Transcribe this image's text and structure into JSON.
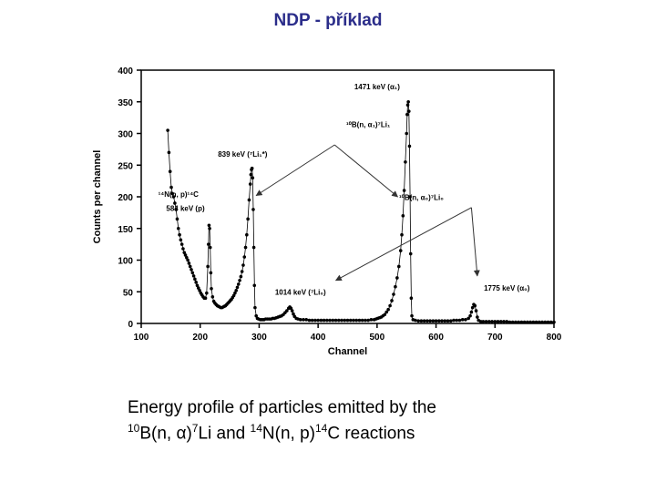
{
  "slide": {
    "title": "NDP - příklad",
    "caption": {
      "line1": "Energy profile of particles emitted by the",
      "sup1": "10",
      "part_b": "B(n, ",
      "alpha": "α",
      "part_c": ")",
      "sup2": "7",
      "part_d": "Li and ",
      "sup3": "14",
      "part_e": "N(n, p)",
      "sup4": "14",
      "part_f": "C reactions"
    }
  },
  "chart_data": {
    "type": "scatter",
    "title": "",
    "xlabel": "Channel",
    "ylabel": "Counts per channel",
    "xlim": [
      100,
      800
    ],
    "ylim": [
      0,
      400
    ],
    "xticks": [
      100,
      200,
      300,
      400,
      500,
      600,
      700,
      800
    ],
    "yticks": [
      0,
      50,
      100,
      150,
      200,
      250,
      300,
      350,
      400
    ],
    "grid": false,
    "colors": {
      "points": "#000000",
      "axis": "#000000"
    },
    "series": [
      {
        "points": [
          [
            145,
            305
          ],
          [
            147,
            270
          ],
          [
            149,
            240
          ],
          [
            151,
            215
          ],
          [
            153,
            205
          ],
          [
            155,
            200
          ],
          [
            157,
            190
          ],
          [
            159,
            180
          ],
          [
            161,
            165
          ],
          [
            163,
            150
          ],
          [
            165,
            140
          ],
          [
            167,
            132
          ],
          [
            169,
            125
          ],
          [
            171,
            118
          ],
          [
            173,
            112
          ],
          [
            175,
            108
          ],
          [
            177,
            104
          ],
          [
            179,
            100
          ],
          [
            181,
            95
          ],
          [
            183,
            90
          ],
          [
            185,
            85
          ],
          [
            187,
            80
          ],
          [
            189,
            75
          ],
          [
            191,
            70
          ],
          [
            193,
            65
          ],
          [
            195,
            60
          ],
          [
            197,
            56
          ],
          [
            199,
            52
          ],
          [
            201,
            48
          ],
          [
            203,
            45
          ],
          [
            205,
            42
          ],
          [
            207,
            40
          ],
          [
            209,
            40
          ],
          [
            211,
            48
          ],
          [
            213,
            90
          ],
          [
            214,
            125
          ],
          [
            215,
            155
          ],
          [
            216,
            150
          ],
          [
            217,
            120
          ],
          [
            218,
            80
          ],
          [
            219,
            55
          ],
          [
            221,
            42
          ],
          [
            223,
            35
          ],
          [
            225,
            32
          ],
          [
            227,
            30
          ],
          [
            229,
            28
          ],
          [
            231,
            27
          ],
          [
            233,
            26
          ],
          [
            235,
            25
          ],
          [
            237,
            25
          ],
          [
            239,
            26
          ],
          [
            241,
            27
          ],
          [
            243,
            28
          ],
          [
            245,
            30
          ],
          [
            247,
            32
          ],
          [
            249,
            34
          ],
          [
            251,
            36
          ],
          [
            253,
            38
          ],
          [
            255,
            41
          ],
          [
            257,
            44
          ],
          [
            259,
            48
          ],
          [
            261,
            52
          ],
          [
            263,
            57
          ],
          [
            265,
            62
          ],
          [
            267,
            68
          ],
          [
            269,
            74
          ],
          [
            271,
            82
          ],
          [
            273,
            92
          ],
          [
            275,
            105
          ],
          [
            277,
            120
          ],
          [
            279,
            140
          ],
          [
            281,
            165
          ],
          [
            283,
            195
          ],
          [
            285,
            220
          ],
          [
            286,
            235
          ],
          [
            287,
            243
          ],
          [
            288,
            245
          ],
          [
            289,
            230
          ],
          [
            290,
            180
          ],
          [
            291,
            120
          ],
          [
            292,
            60
          ],
          [
            293,
            25
          ],
          [
            295,
            12
          ],
          [
            297,
            8
          ],
          [
            299,
            7
          ],
          [
            302,
            6
          ],
          [
            305,
            6
          ],
          [
            308,
            6
          ],
          [
            311,
            7
          ],
          [
            314,
            7
          ],
          [
            317,
            7
          ],
          [
            320,
            7
          ],
          [
            323,
            8
          ],
          [
            326,
            8
          ],
          [
            329,
            9
          ],
          [
            332,
            10
          ],
          [
            335,
            11
          ],
          [
            338,
            12
          ],
          [
            341,
            14
          ],
          [
            344,
            17
          ],
          [
            347,
            20
          ],
          [
            350,
            24
          ],
          [
            352,
            26
          ],
          [
            354,
            24
          ],
          [
            356,
            20
          ],
          [
            358,
            15
          ],
          [
            360,
            11
          ],
          [
            363,
            8
          ],
          [
            366,
            7
          ],
          [
            370,
            6
          ],
          [
            375,
            6
          ],
          [
            380,
            6
          ],
          [
            385,
            5
          ],
          [
            390,
            5
          ],
          [
            395,
            5
          ],
          [
            400,
            5
          ],
          [
            405,
            5
          ],
          [
            410,
            5
          ],
          [
            415,
            5
          ],
          [
            420,
            5
          ],
          [
            425,
            5
          ],
          [
            430,
            5
          ],
          [
            435,
            5
          ],
          [
            440,
            5
          ],
          [
            445,
            5
          ],
          [
            450,
            5
          ],
          [
            455,
            5
          ],
          [
            460,
            5
          ],
          [
            465,
            5
          ],
          [
            470,
            5
          ],
          [
            475,
            5
          ],
          [
            480,
            5
          ],
          [
            485,
            5
          ],
          [
            490,
            6
          ],
          [
            495,
            6
          ],
          [
            498,
            7
          ],
          [
            501,
            8
          ],
          [
            504,
            9
          ],
          [
            507,
            10
          ],
          [
            510,
            12
          ],
          [
            513,
            14
          ],
          [
            516,
            18
          ],
          [
            519,
            22
          ],
          [
            522,
            28
          ],
          [
            525,
            36
          ],
          [
            528,
            46
          ],
          [
            531,
            58
          ],
          [
            534,
            72
          ],
          [
            537,
            90
          ],
          [
            540,
            115
          ],
          [
            542,
            140
          ],
          [
            544,
            170
          ],
          [
            546,
            210
          ],
          [
            548,
            255
          ],
          [
            550,
            300
          ],
          [
            551,
            330
          ],
          [
            552,
            345
          ],
          [
            553,
            350
          ],
          [
            554,
            335
          ],
          [
            555,
            280
          ],
          [
            556,
            200
          ],
          [
            557,
            110
          ],
          [
            558,
            40
          ],
          [
            559,
            12
          ],
          [
            561,
            6
          ],
          [
            565,
            5
          ],
          [
            570,
            4
          ],
          [
            575,
            4
          ],
          [
            580,
            4
          ],
          [
            585,
            4
          ],
          [
            590,
            4
          ],
          [
            595,
            4
          ],
          [
            600,
            4
          ],
          [
            605,
            4
          ],
          [
            610,
            4
          ],
          [
            615,
            4
          ],
          [
            620,
            4
          ],
          [
            625,
            4
          ],
          [
            630,
            5
          ],
          [
            635,
            5
          ],
          [
            640,
            5
          ],
          [
            645,
            6
          ],
          [
            650,
            6
          ],
          [
            655,
            8
          ],
          [
            658,
            12
          ],
          [
            660,
            18
          ],
          [
            662,
            25
          ],
          [
            664,
            30
          ],
          [
            666,
            28
          ],
          [
            668,
            20
          ],
          [
            670,
            10
          ],
          [
            672,
            5
          ],
          [
            676,
            3
          ],
          [
            680,
            3
          ],
          [
            685,
            3
          ],
          [
            690,
            3
          ],
          [
            695,
            3
          ],
          [
            700,
            3
          ],
          [
            705,
            3
          ],
          [
            710,
            3
          ],
          [
            715,
            3
          ],
          [
            720,
            3
          ],
          [
            725,
            2
          ],
          [
            730,
            2
          ],
          [
            735,
            2
          ],
          [
            740,
            2
          ],
          [
            745,
            2
          ],
          [
            750,
            2
          ],
          [
            755,
            2
          ],
          [
            760,
            2
          ],
          [
            765,
            2
          ],
          [
            770,
            2
          ],
          [
            775,
            2
          ],
          [
            780,
            2
          ],
          [
            785,
            2
          ],
          [
            790,
            2
          ],
          [
            795,
            2
          ],
          [
            800,
            2
          ]
        ]
      }
    ],
    "annotations": [
      {
        "id": "a1",
        "text": "1471 keV (α₁)",
        "at": [
          500,
          370
        ]
      },
      {
        "id": "a2",
        "text": "¹⁰B(n, α₁)⁷Li₁",
        "at": [
          485,
          310
        ]
      },
      {
        "id": "a3",
        "text": "839 keV (⁷Li₁*)",
        "at": [
          272,
          263
        ]
      },
      {
        "id": "a4",
        "text": "¹⁴N(n, p)¹⁴C",
        "at": [
          163,
          200
        ]
      },
      {
        "id": "a5",
        "text": "584 keV (p)",
        "at": [
          175,
          178
        ]
      },
      {
        "id": "a6",
        "text": "¹⁰B(n, α₀)⁷Li₀",
        "at": [
          575,
          195
        ]
      },
      {
        "id": "a7",
        "text": "1014 keV (⁷Li₀)",
        "at": [
          370,
          45
        ]
      },
      {
        "id": "a8",
        "text": "1775 keV (α₀)",
        "at": [
          720,
          52
        ]
      }
    ],
    "arrows": [
      {
        "from": [
          428,
          282
        ],
        "to": [
          295,
          202
        ]
      },
      {
        "from": [
          428,
          282
        ],
        "to": [
          535,
          200
        ]
      },
      {
        "from": [
          660,
          183
        ],
        "to": [
          430,
          68
        ]
      },
      {
        "from": [
          660,
          183
        ],
        "to": [
          670,
          75
        ]
      }
    ]
  }
}
